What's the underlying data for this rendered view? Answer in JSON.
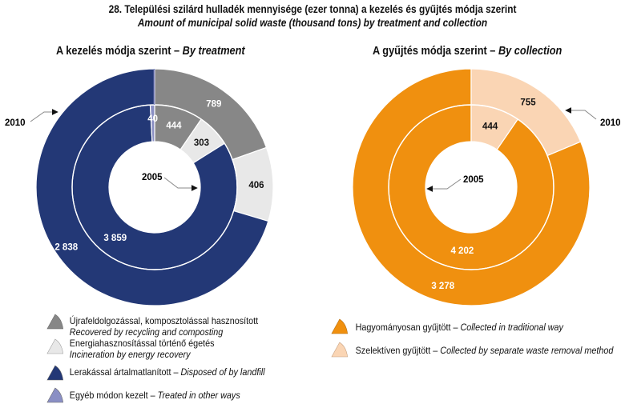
{
  "title": "28. Települési szilárd hulladék mennyisége (ezer tonna) a kezelés és gyűjtés módja szerint",
  "subtitle": "Amount of municipal solid waste (thousand tons) by treatment and collection",
  "chart_data": [
    {
      "type": "pie",
      "variant": "nested-donut",
      "title_hu": "A kezelés módja szerint",
      "title_sep": " – ",
      "title_en": "By treatment",
      "ring_labels": {
        "outer": "2010",
        "inner": "2005"
      },
      "categories": [
        {
          "key": "recycling",
          "hu": "Újrafeldolgozással, komposztolással hasznosított",
          "en": "Recovered by recycling and composting",
          "color": "#878787",
          "label_color": "#ffffff"
        },
        {
          "key": "incineration",
          "hu": "Energiahasznosítással történő égetés",
          "en": "Incineration by energy recovery",
          "color": "#e8e8e8",
          "label_color": "#111111"
        },
        {
          "key": "landfill",
          "hu": "Lerakással ártalmatlanított",
          "en": "Disposed of by landfill",
          "color": "#233876",
          "label_color": "#ffffff"
        },
        {
          "key": "other",
          "hu": "Egyéb módon kezelt",
          "en": "Treated in other ways",
          "color": "#8a8fc4",
          "label_color": "#ffffff"
        }
      ],
      "series": [
        {
          "name": "2005",
          "ring": "inner",
          "values": [
            444,
            303,
            3859,
            40
          ],
          "labels": [
            "444",
            "303",
            "3 859",
            "40"
          ]
        },
        {
          "name": "2010",
          "ring": "outer",
          "values": [
            789,
            406,
            2838,
            null
          ],
          "labels": [
            "789",
            "406",
            "2 838",
            ""
          ]
        }
      ],
      "start": "top",
      "direction": "clockwise"
    },
    {
      "type": "pie",
      "variant": "nested-donut",
      "title_hu": "A gyűjtés módja szerint",
      "title_sep": " – ",
      "title_en": "By collection",
      "ring_labels": {
        "outer": "2010",
        "inner": "2005"
      },
      "categories": [
        {
          "key": "traditional",
          "hu": "Hagyományosan gyűjtött",
          "en": "Collected in traditional way",
          "color": "#f0900f",
          "label_color": "#ffffff"
        },
        {
          "key": "selective",
          "hu": "Szelektíven gyűjtött",
          "en": "Collected by separate waste removal method",
          "color": "#fad5b4",
          "label_color": "#111111"
        }
      ],
      "series": [
        {
          "name": "2005",
          "ring": "inner",
          "values": [
            4202,
            444
          ],
          "labels": [
            "4 202",
            "444"
          ]
        },
        {
          "name": "2010",
          "ring": "outer",
          "values": [
            3278,
            755
          ],
          "labels": [
            "3 278",
            "755"
          ]
        }
      ],
      "start": "top",
      "direction": "clockwise"
    }
  ]
}
